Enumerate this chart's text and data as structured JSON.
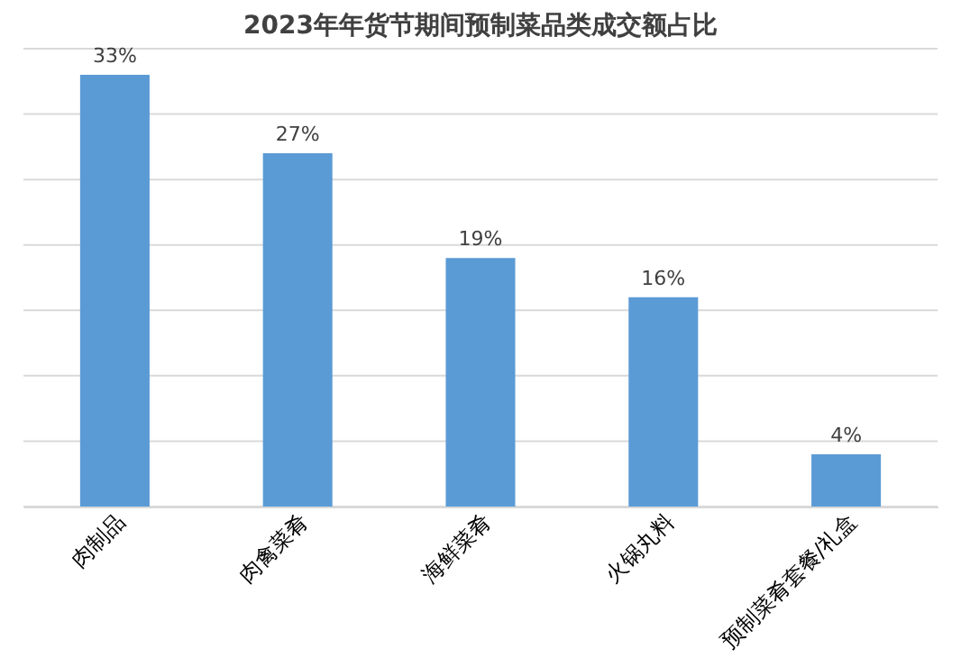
{
  "chart_data": {
    "type": "bar",
    "title": "2023年年货节期间预制菜品类成交额占比",
    "categories": [
      "肉制品",
      "肉禽菜肴",
      "海鲜菜肴",
      "火锅丸料",
      "预制菜肴套餐/礼盒"
    ],
    "values": [
      33,
      27,
      19,
      16,
      4
    ],
    "value_labels": [
      "33%",
      "27%",
      "19%",
      "16%",
      "4%"
    ],
    "color": "#5b9bd5",
    "ylim": [
      0,
      35
    ],
    "yticks": [
      {
        "value": 0,
        "label": null
      },
      {
        "value": 5,
        "label": null
      },
      {
        "value": 10,
        "label": null
      },
      {
        "value": 15,
        "label": null
      },
      {
        "value": 20,
        "label": null
      },
      {
        "value": 25,
        "label": null
      },
      {
        "value": 30,
        "label": null
      },
      {
        "value": 35,
        "label": null
      }
    ],
    "grid": "y",
    "tick_labels": "x"
  }
}
